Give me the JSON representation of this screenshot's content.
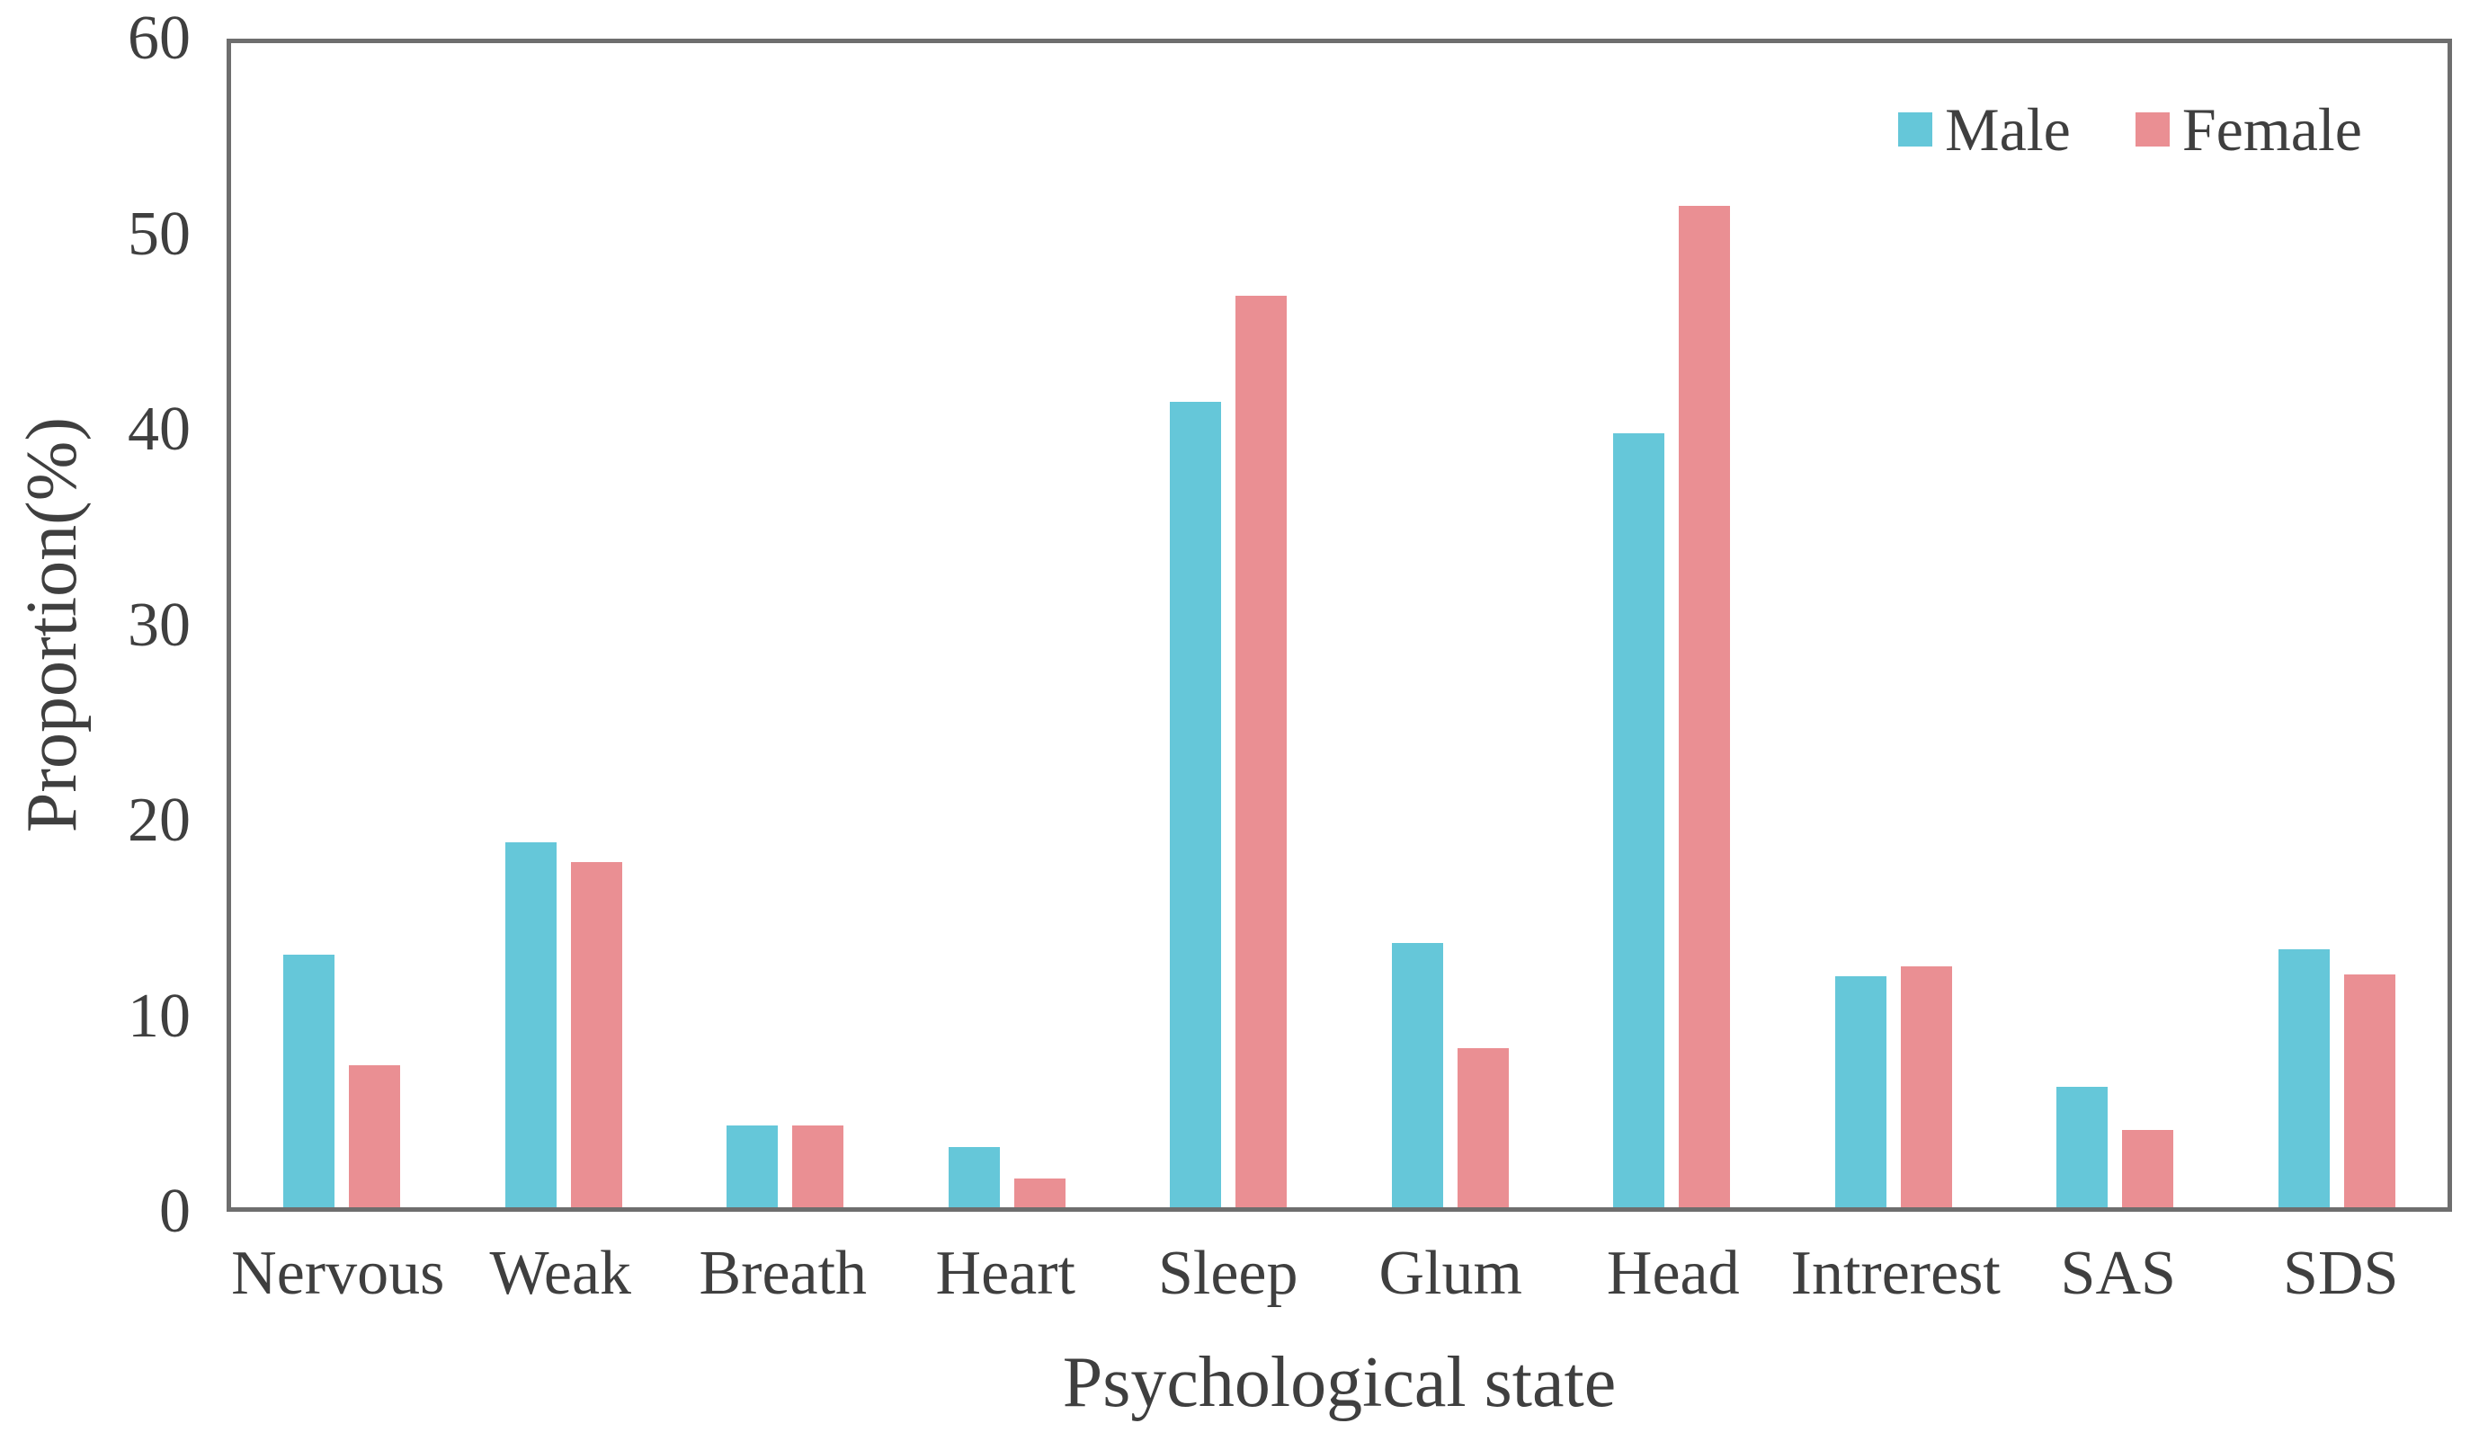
{
  "figure": {
    "background_color": "#ffffff",
    "border_color": "#6e6e6e",
    "text_color": "#3f3f3f"
  },
  "chart_data": {
    "type": "bar",
    "title": "",
    "xlabel": "Psychological state",
    "ylabel": "Proportion(%)",
    "ylim": [
      0,
      60
    ],
    "yticks": [
      0,
      10,
      20,
      30,
      40,
      50,
      60
    ],
    "grid": false,
    "legend_position": "top-right-inside",
    "categories": [
      "Nervous",
      "Weak",
      "Breath",
      "Heart",
      "Sleep",
      "Glum",
      "Head",
      "Intrerest",
      "SAS",
      "SDS"
    ],
    "series": [
      {
        "name": "Male",
        "color": "#65c7d9",
        "values": [
          13.0,
          18.8,
          4.2,
          3.1,
          41.5,
          13.6,
          39.9,
          11.9,
          6.2,
          13.3
        ]
      },
      {
        "name": "Female",
        "color": "#ea8f93",
        "values": [
          7.3,
          17.8,
          4.2,
          1.5,
          47.0,
          8.2,
          51.6,
          12.4,
          4.0,
          12.0
        ]
      }
    ]
  }
}
